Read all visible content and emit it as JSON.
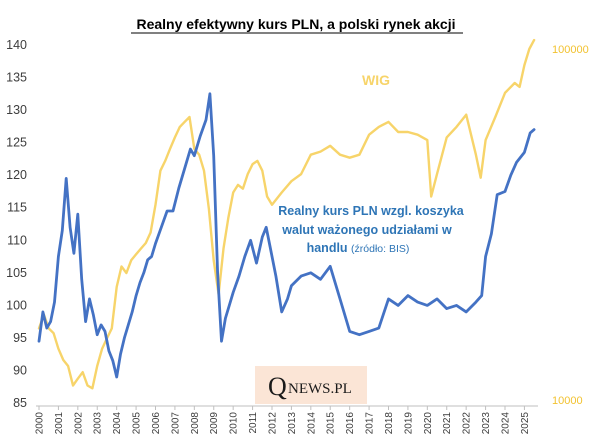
{
  "chart_data": {
    "type": "line",
    "title": "Realny efektywny kurs PLN, a polski rynek akcji",
    "x_tick_labels": [
      "2000",
      "2001",
      "2002",
      "2003",
      "2004",
      "2005",
      "2006",
      "2007",
      "2008",
      "2009",
      "2010",
      "2011",
      "2012",
      "2013",
      "2014",
      "2015",
      "2016",
      "2017",
      "2018",
      "2019",
      "2020",
      "2021",
      "2022",
      "2023",
      "2024",
      "2025"
    ],
    "left_axis": {
      "ylim": [
        85,
        140
      ],
      "ticks": [
        "85",
        "90",
        "95",
        "100",
        "105",
        "110",
        "115",
        "120",
        "125",
        "130",
        "135",
        "140"
      ]
    },
    "right_axis": {
      "scale": "log",
      "ticks": [
        "100000",
        "10000"
      ]
    },
    "grid": false,
    "series": [
      {
        "name": "WIG",
        "axis": "right",
        "color": "#f7d46a",
        "x": [
          2000.0,
          2000.25,
          2000.5,
          2000.75,
          2001.0,
          2001.25,
          2001.5,
          2001.75,
          2002.0,
          2002.25,
          2002.5,
          2002.75,
          2003.0,
          2003.25,
          2003.5,
          2003.75,
          2004.0,
          2004.25,
          2004.5,
          2004.75,
          2005.0,
          2005.25,
          2005.5,
          2005.75,
          2006.0,
          2006.25,
          2006.5,
          2006.75,
          2007.0,
          2007.25,
          2007.5,
          2007.75,
          2008.0,
          2008.25,
          2008.5,
          2008.75,
          2009.0,
          2009.25,
          2009.5,
          2009.75,
          2010.0,
          2010.25,
          2010.5,
          2010.75,
          2011.0,
          2011.25,
          2011.5,
          2011.75,
          2012.0,
          2012.5,
          2013.0,
          2013.5,
          2014.0,
          2014.5,
          2015.0,
          2015.5,
          2016.0,
          2016.5,
          2017.0,
          2017.5,
          2018.0,
          2018.5,
          2019.0,
          2019.5,
          2020.0,
          2020.2,
          2020.5,
          2021.0,
          2021.5,
          2022.0,
          2022.5,
          2022.75,
          2023.0,
          2023.5,
          2024.0,
          2024.5,
          2024.75,
          2025.0,
          2025.25,
          2025.5
        ],
        "values": [
          16000,
          17500,
          16000,
          15500,
          14000,
          13000,
          12500,
          11000,
          11500,
          12000,
          11000,
          10800,
          12500,
          14000,
          15000,
          16000,
          21000,
          24000,
          23000,
          25000,
          26000,
          27000,
          28000,
          30000,
          36000,
          45000,
          48000,
          52000,
          56000,
          60000,
          62000,
          64000,
          52000,
          50000,
          45000,
          35000,
          25000,
          20000,
          27000,
          33000,
          39000,
          41000,
          40000,
          44000,
          47000,
          48000,
          45000,
          38000,
          36000,
          39000,
          42000,
          44000,
          50000,
          51000,
          53000,
          50000,
          49000,
          50000,
          57000,
          60000,
          62000,
          58000,
          58000,
          57000,
          55000,
          38000,
          44000,
          56000,
          60000,
          65000,
          50000,
          43000,
          55000,
          64000,
          75000,
          80000,
          78000,
          90000,
          100000,
          106000
        ]
      },
      {
        "name": "Realny kurs PLN wzgl. koszyka walut ważonego udziałami w handlu",
        "axis": "left",
        "color": "#4472c4",
        "x": [
          2000.0,
          2000.2,
          2000.4,
          2000.6,
          2000.8,
          2001.0,
          2001.2,
          2001.4,
          2001.6,
          2001.8,
          2002.0,
          2002.2,
          2002.4,
          2002.6,
          2002.8,
          2003.0,
          2003.2,
          2003.4,
          2003.6,
          2003.8,
          2004.0,
          2004.2,
          2004.4,
          2004.6,
          2004.8,
          2005.0,
          2005.2,
          2005.4,
          2005.6,
          2005.8,
          2006.0,
          2006.3,
          2006.6,
          2006.9,
          2007.2,
          2007.5,
          2007.8,
          2008.0,
          2008.3,
          2008.6,
          2008.8,
          2009.0,
          2009.2,
          2009.4,
          2009.6,
          2009.8,
          2010.0,
          2010.3,
          2010.6,
          2010.9,
          2011.2,
          2011.5,
          2011.7,
          2011.9,
          2012.2,
          2012.5,
          2012.8,
          2013.0,
          2013.5,
          2014.0,
          2014.5,
          2015.0,
          2015.5,
          2016.0,
          2016.5,
          2017.0,
          2017.5,
          2018.0,
          2018.5,
          2019.0,
          2019.5,
          2020.0,
          2020.5,
          2021.0,
          2021.5,
          2022.0,
          2022.5,
          2022.8,
          2023.0,
          2023.3,
          2023.6,
          2024.0,
          2024.3,
          2024.6,
          2025.0,
          2025.3,
          2025.5
        ],
        "values": [
          94.5,
          99,
          96.5,
          97.5,
          100.5,
          107.5,
          111.5,
          119.5,
          112,
          108,
          114,
          104,
          97.5,
          101,
          98.5,
          95.5,
          97,
          96,
          93,
          91.5,
          89,
          92.5,
          95,
          97,
          99,
          101.5,
          103.5,
          105,
          107,
          107.5,
          109.5,
          112,
          114.5,
          114.5,
          118,
          121,
          124,
          123,
          126,
          128.5,
          132.5,
          123,
          105,
          94.5,
          98,
          100,
          102,
          104.5,
          107.5,
          110,
          106.5,
          110.5,
          112,
          109,
          104.5,
          99,
          101,
          103,
          104.5,
          105,
          104,
          106,
          101,
          96,
          95.5,
          96,
          96.5,
          101,
          100,
          101.5,
          100.5,
          100,
          101,
          99.5,
          100,
          99,
          100.5,
          101.5,
          107.5,
          111,
          117,
          117.5,
          120,
          122,
          123.5,
          126.5,
          127
        ]
      }
    ],
    "annotations": {
      "wig_label": "WIG",
      "pln_label_lines": [
        "Realny kurs PLN wzgl. koszyka",
        "walut ważonego udziałami w",
        "handlu"
      ],
      "pln_source": "(źródło: BIS)"
    }
  },
  "watermark": {
    "q": "Q",
    "text": "NEWS.PL",
    "bg": "#fbe5d6"
  }
}
